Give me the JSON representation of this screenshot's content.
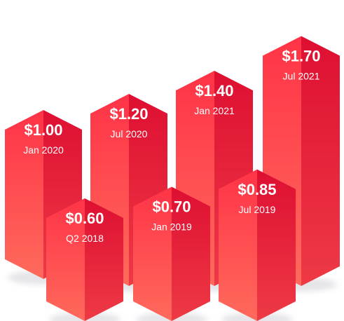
{
  "chart_data": {
    "type": "bar",
    "title": "",
    "xlabel": "",
    "ylabel": "",
    "colors": {
      "light": "#ff4551",
      "dark": "#e5142e",
      "shadow": "#d0d0d8"
    },
    "bars": [
      {
        "period": "Jan 2020",
        "price_label": "$1.00",
        "value": 1.0
      },
      {
        "period": "Q2 2018",
        "price_label": "$0.60",
        "value": 0.6
      },
      {
        "period": "Jul 2020",
        "price_label": "$1.20",
        "value": 1.2
      },
      {
        "period": "Jan 2019",
        "price_label": "$0.70",
        "value": 0.7
      },
      {
        "period": "Jan 2021",
        "price_label": "$1.40",
        "value": 1.4
      },
      {
        "period": "Jul 2019",
        "price_label": "$0.85",
        "value": 0.85
      },
      {
        "period": "Jul 2021",
        "price_label": "$1.70",
        "value": 1.7
      }
    ]
  }
}
